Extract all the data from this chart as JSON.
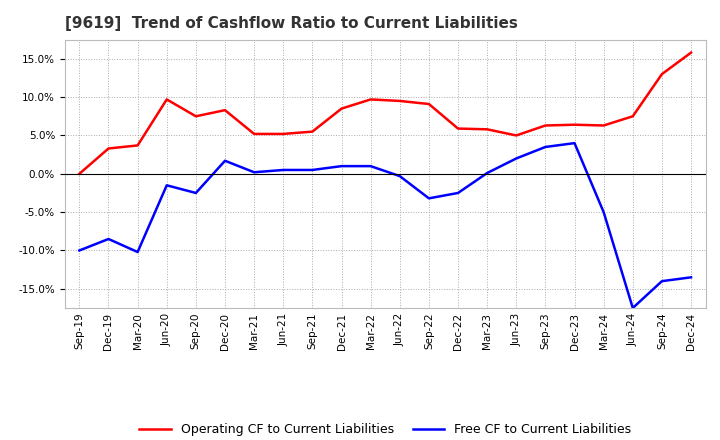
{
  "title": "[9619]  Trend of Cashflow Ratio to Current Liabilities",
  "x_labels": [
    "Sep-19",
    "Dec-19",
    "Mar-20",
    "Jun-20",
    "Sep-20",
    "Dec-20",
    "Mar-21",
    "Jun-21",
    "Sep-21",
    "Dec-21",
    "Mar-22",
    "Jun-22",
    "Sep-22",
    "Dec-22",
    "Mar-23",
    "Jun-23",
    "Sep-23",
    "Dec-23",
    "Mar-24",
    "Jun-24",
    "Sep-24",
    "Dec-24"
  ],
  "operating_cf": [
    0.0,
    3.3,
    3.7,
    9.7,
    7.5,
    8.3,
    5.2,
    5.2,
    5.5,
    8.5,
    9.7,
    9.5,
    9.1,
    5.9,
    5.8,
    5.0,
    6.3,
    6.4,
    6.3,
    7.5,
    13.0,
    15.8
  ],
  "free_cf": [
    -10.0,
    -8.5,
    -10.2,
    -1.5,
    -2.5,
    1.7,
    0.2,
    0.5,
    0.5,
    1.0,
    1.0,
    -0.3,
    -3.2,
    -2.5,
    0.1,
    2.0,
    3.5,
    4.0,
    -5.0,
    -17.5,
    -14.0,
    -13.5
  ],
  "operating_color": "#FF0000",
  "free_color": "#0000FF",
  "ylim": [
    -17.5,
    17.5
  ],
  "yticks": [
    -15.0,
    -10.0,
    -5.0,
    0.0,
    5.0,
    10.0,
    15.0
  ],
  "background_color": "#FFFFFF",
  "grid_color": "#AAAAAA",
  "legend_operating": "Operating CF to Current Liabilities",
  "legend_free": "Free CF to Current Liabilities",
  "linewidth": 1.8,
  "title_fontsize": 11,
  "tick_fontsize": 7.5,
  "legend_fontsize": 9
}
